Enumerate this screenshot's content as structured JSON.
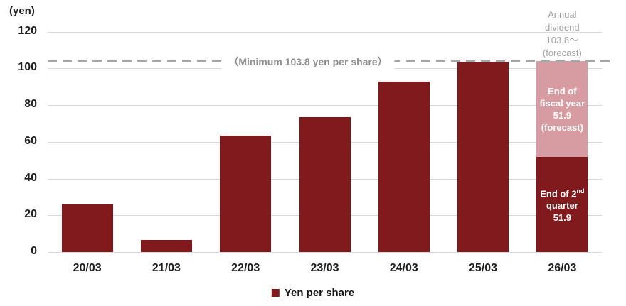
{
  "colors": {
    "bar_dark": "#811A1D",
    "bar_pink": "#D79BA2",
    "gridline": "#D9D9D9",
    "dashed_line": "#A6A6A6",
    "gray_text": "#A3A3A3",
    "axis_text": "#222222"
  },
  "chart_data": {
    "type": "bar",
    "title": "",
    "ylabel_unit": "(yen)",
    "xlabel": "",
    "ylim": [
      0,
      120
    ],
    "ytick_interval": 20,
    "yticks": [
      0,
      20,
      40,
      60,
      80,
      100,
      120
    ],
    "grid": true,
    "legend_position": "bottom-center",
    "categories": [
      "20/03",
      "21/03",
      "22/03",
      "23/03",
      "24/03",
      "25/03",
      "26/03"
    ],
    "series": [
      {
        "name": "Yen per share",
        "values": [
          26,
          6.4,
          63.5,
          73.5,
          92.8,
          103.5,
          51.9
        ]
      },
      {
        "name": "End of fiscal year (forecast)",
        "values": [
          null,
          null,
          null,
          null,
          null,
          null,
          51.9
        ]
      }
    ],
    "bars": [
      {
        "category": "20/03",
        "segments": [
          {
            "value": 26,
            "color_key": "bar_dark"
          }
        ]
      },
      {
        "category": "21/03",
        "segments": [
          {
            "value": 6.4,
            "color_key": "bar_dark"
          }
        ]
      },
      {
        "category": "22/03",
        "segments": [
          {
            "value": 63.5,
            "color_key": "bar_dark"
          }
        ]
      },
      {
        "category": "23/03",
        "segments": [
          {
            "value": 73.5,
            "color_key": "bar_dark"
          }
        ]
      },
      {
        "category": "24/03",
        "segments": [
          {
            "value": 92.8,
            "color_key": "bar_dark"
          }
        ]
      },
      {
        "category": "25/03",
        "segments": [
          {
            "value": 103.5,
            "color_key": "bar_dark"
          }
        ]
      },
      {
        "category": "26/03",
        "segments": [
          {
            "value": 51.9,
            "color_key": "bar_dark",
            "label_lines": [
              "End of 2*nd*",
              "quarter",
              "51.9"
            ]
          },
          {
            "value": 51.9,
            "color_key": "bar_pink",
            "label_lines": [
              "End of",
              "fiscal year",
              "51.9",
              "(forecast)"
            ]
          }
        ]
      }
    ],
    "reference_line": {
      "value": 103.8,
      "label": "（Minimum 103.8 yen per share）"
    },
    "annotation": {
      "lines": [
        "Annual",
        "dividend",
        "103.8～",
        "(forecast)"
      ]
    },
    "legend": [
      {
        "label": "Yen per share",
        "color_key": "bar_dark"
      }
    ]
  }
}
